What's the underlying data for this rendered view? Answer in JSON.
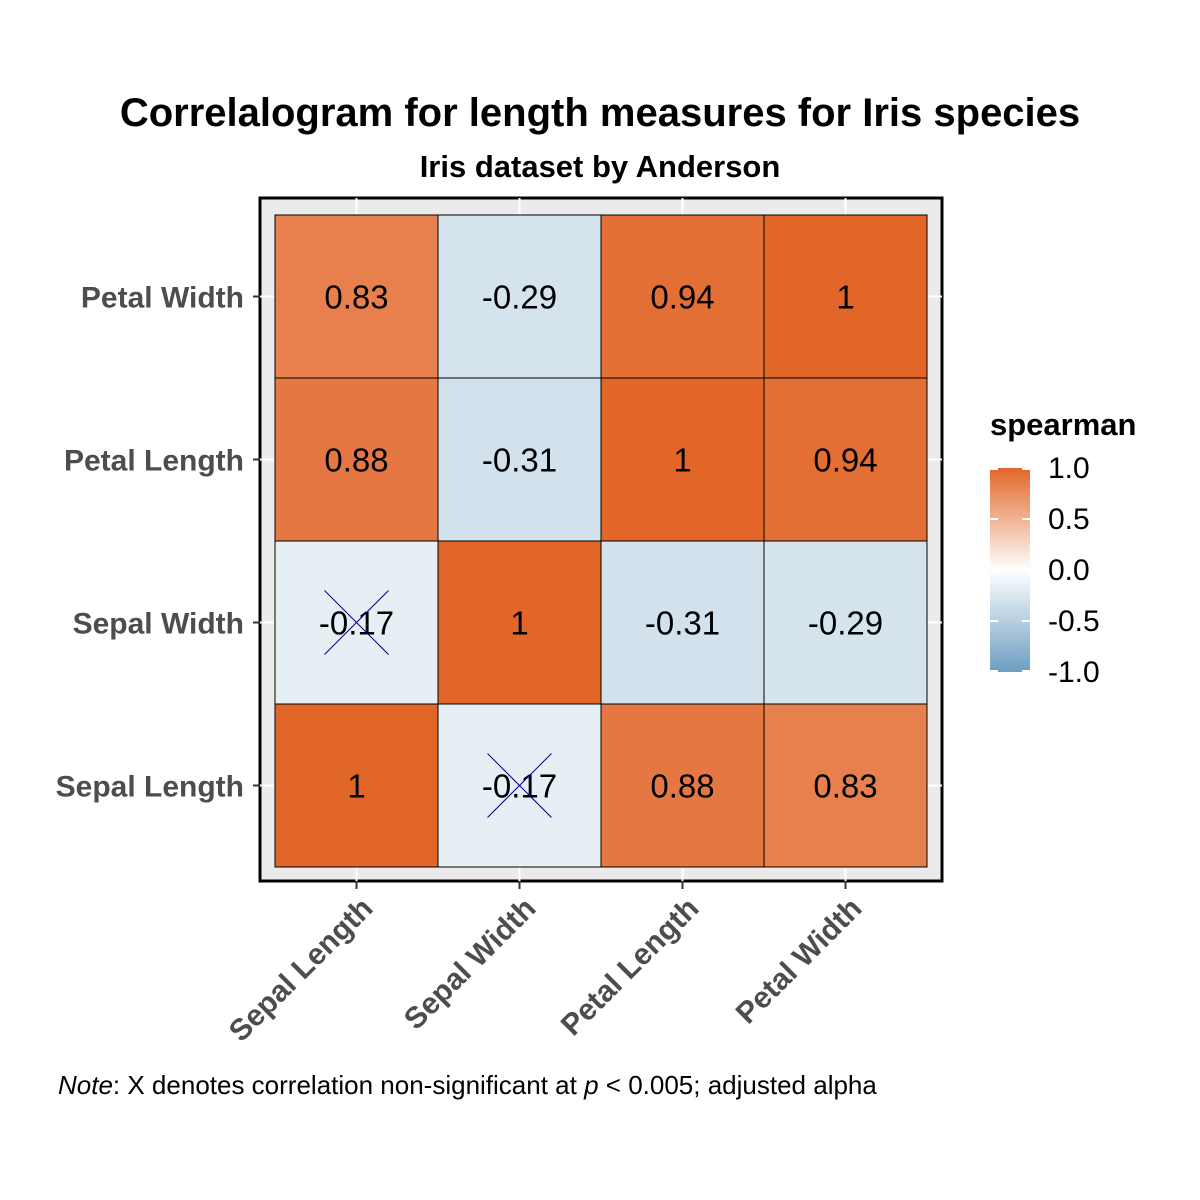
{
  "chart_data": {
    "type": "heatmap",
    "title": "Correlalogram for length measures for Iris species",
    "subtitle": "Iris dataset by Anderson",
    "x_categories": [
      "Sepal Length",
      "Sepal Width",
      "Petal Length",
      "Petal Width"
    ],
    "y_categories": [
      "Sepal Length",
      "Sepal Width",
      "Petal Length",
      "Petal Width"
    ],
    "values": [
      [
        1,
        -0.17,
        0.88,
        0.83
      ],
      [
        -0.17,
        1,
        -0.31,
        -0.29
      ],
      [
        0.88,
        -0.31,
        1,
        0.94
      ],
      [
        0.83,
        -0.29,
        0.94,
        1
      ]
    ],
    "labels": [
      [
        "1",
        "-0.17",
        "0.88",
        "0.83"
      ],
      [
        "-0.17",
        "1",
        "-0.31",
        "-0.29"
      ],
      [
        "0.88",
        "-0.31",
        "1",
        "0.94"
      ],
      [
        "0.83",
        "-0.29",
        "0.94",
        "1"
      ]
    ],
    "non_significant": [
      [
        false,
        true,
        false,
        false
      ],
      [
        true,
        false,
        false,
        false
      ],
      [
        false,
        false,
        false,
        false
      ],
      [
        false,
        false,
        false,
        false
      ]
    ],
    "legend": {
      "title": "spearman",
      "ticks": [
        "1.0",
        "0.5",
        "0.0",
        "-0.5",
        "-1.0"
      ],
      "tick_values": [
        1.0,
        0.5,
        0.0,
        -0.5,
        -1.0
      ],
      "range": [
        -1,
        1
      ],
      "placement": "right"
    },
    "colors": {
      "high": "#E26628",
      "mid": "#FFFFFF",
      "low": "#6D9EC1",
      "panel": "#EBEBEB",
      "cross": "#00008B"
    },
    "note": {
      "italic": "Note",
      "text1": ": X denotes correlation non-significant at ",
      "p": "p",
      "text2": " < 0.005; adjusted alpha"
    }
  }
}
